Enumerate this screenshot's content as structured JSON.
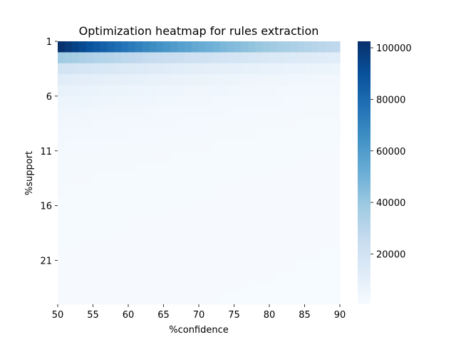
{
  "chart_data": {
    "type": "heatmap",
    "title": "Optimization heatmap for rules extraction",
    "xlabel": "%confidence",
    "ylabel": "%support",
    "x_values": [
      50,
      51,
      52,
      53,
      54,
      55,
      56,
      57,
      58,
      59,
      60,
      61,
      62,
      63,
      64,
      65,
      66,
      67,
      68,
      69,
      70,
      71,
      72,
      73,
      74,
      75,
      76,
      77,
      78,
      79,
      80,
      81,
      82,
      83,
      84,
      85,
      86,
      87,
      88,
      89
    ],
    "y_values": [
      1,
      2,
      3,
      4,
      5,
      6,
      7,
      8,
      9,
      10,
      11,
      12,
      13,
      14,
      15,
      16,
      17,
      18,
      19,
      20,
      21,
      22,
      23,
      24
    ],
    "x_ticks": [
      50,
      55,
      60,
      65,
      70,
      75,
      80,
      85,
      90
    ],
    "y_ticks": [
      1,
      6,
      11,
      16,
      21
    ],
    "colormap": "Blues",
    "colorbar_range": [
      500,
      102500
    ],
    "colorbar_ticks": [
      20000,
      40000,
      60000,
      80000,
      100000
    ],
    "row_first_conf_values": [
      102000,
      38000,
      19000,
      12000,
      8000,
      6000,
      4500,
      3600,
      3000,
      2500,
      2200,
      2000,
      1800,
      1700,
      1600,
      1500,
      1400,
      1350,
      1300,
      1250,
      1200,
      1150,
      1100,
      1050
    ],
    "row_last_conf_values": [
      28000,
      11500,
      6000,
      3500,
      2600,
      2000,
      1700,
      1500,
      1350,
      1250,
      1150,
      1100,
      1050,
      1000,
      980,
      960,
      940,
      920,
      900,
      880,
      860,
      840,
      820,
      800
    ]
  }
}
